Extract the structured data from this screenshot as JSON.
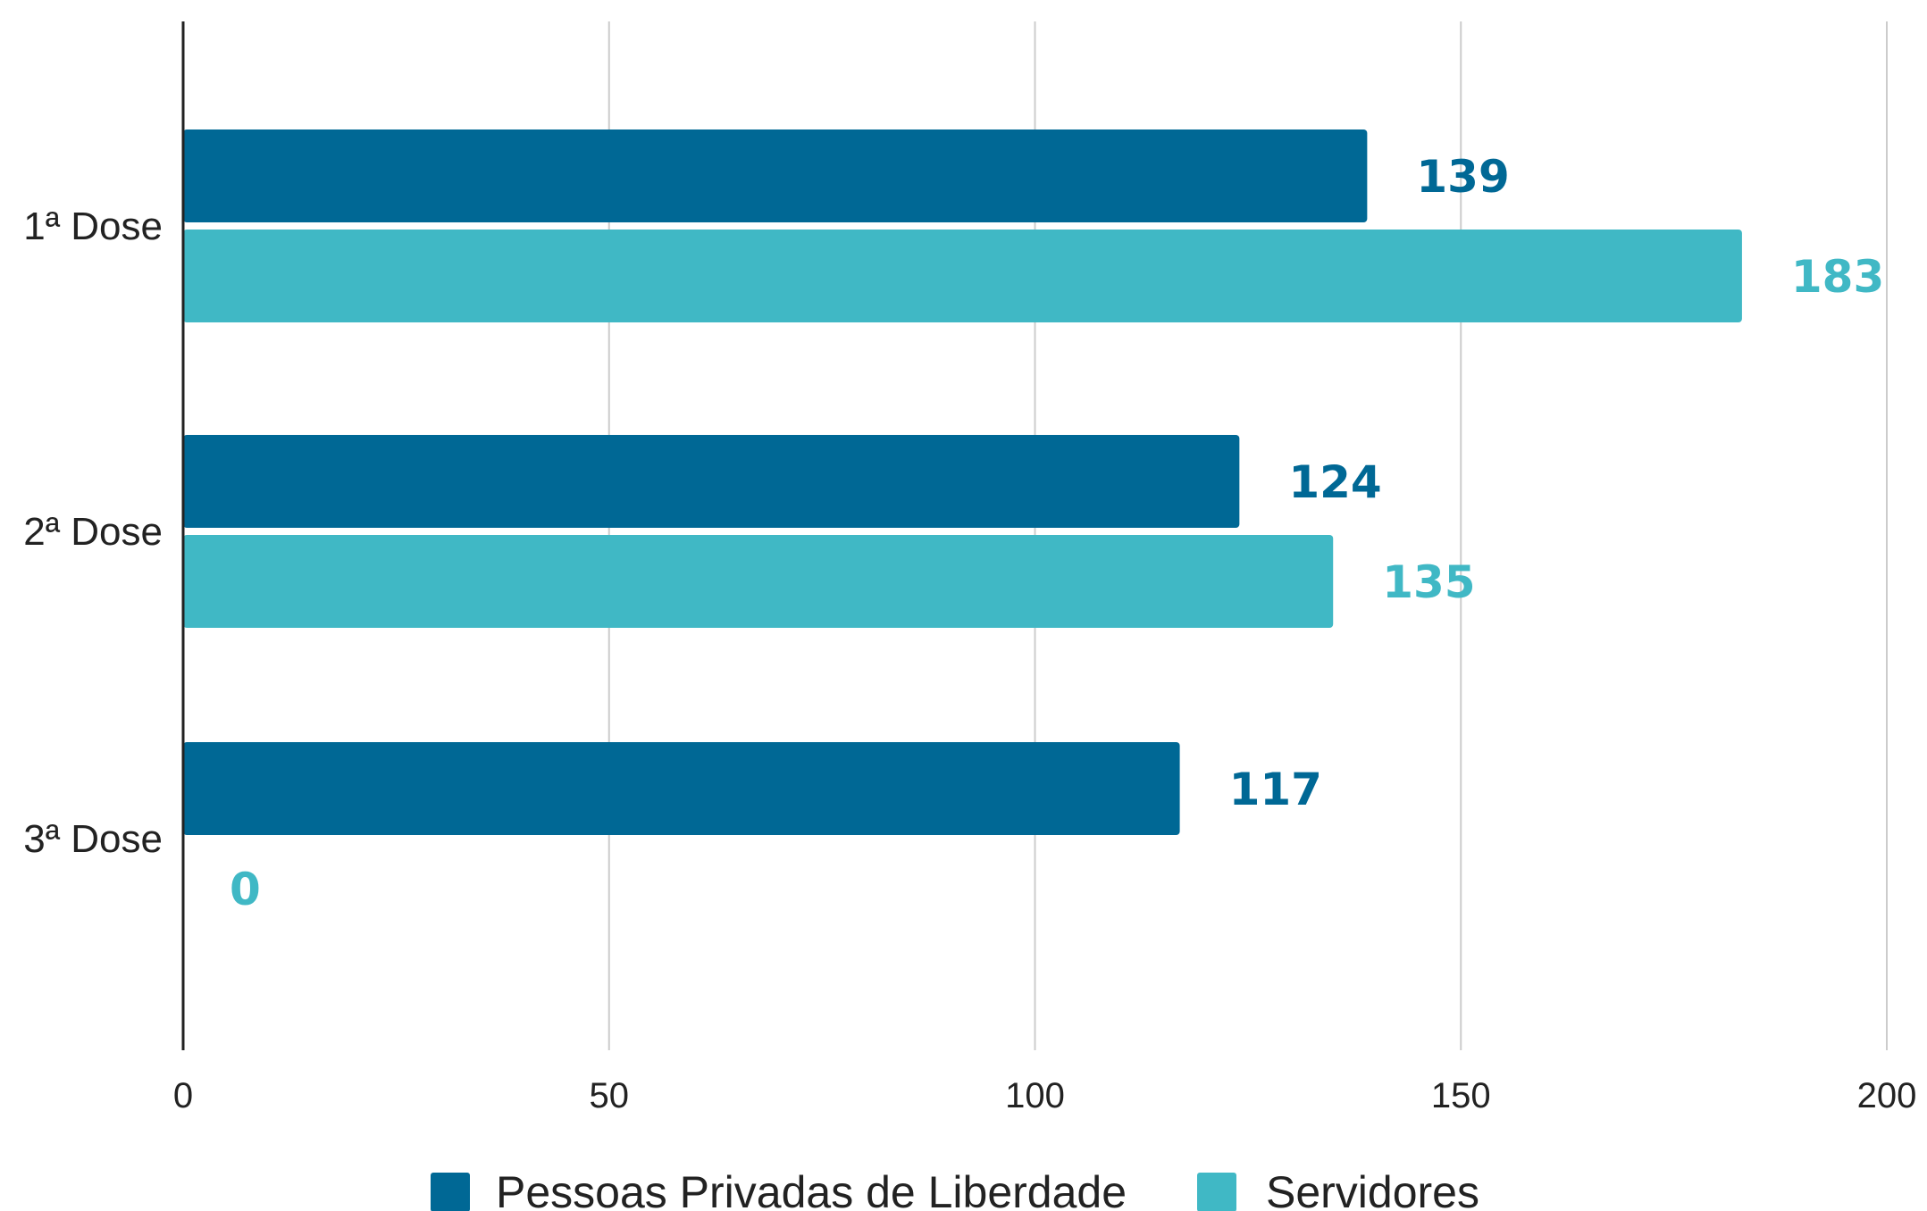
{
  "chart_data": {
    "type": "bar",
    "orientation": "horizontal",
    "categories": [
      "1ª Dose",
      "2ª Dose",
      "3ª Dose"
    ],
    "series": [
      {
        "name": "Pessoas Privadas de Liberdade",
        "color": "#006895",
        "values": [
          139,
          124,
          117
        ]
      },
      {
        "name": "Servidores",
        "color": "#40b8c5",
        "values": [
          183,
          135,
          0
        ]
      }
    ],
    "xlim": [
      0,
      200
    ],
    "xticks": [
      0,
      50,
      100,
      150,
      200
    ],
    "grid": true,
    "legend_position": "bottom",
    "data_labels": true
  }
}
